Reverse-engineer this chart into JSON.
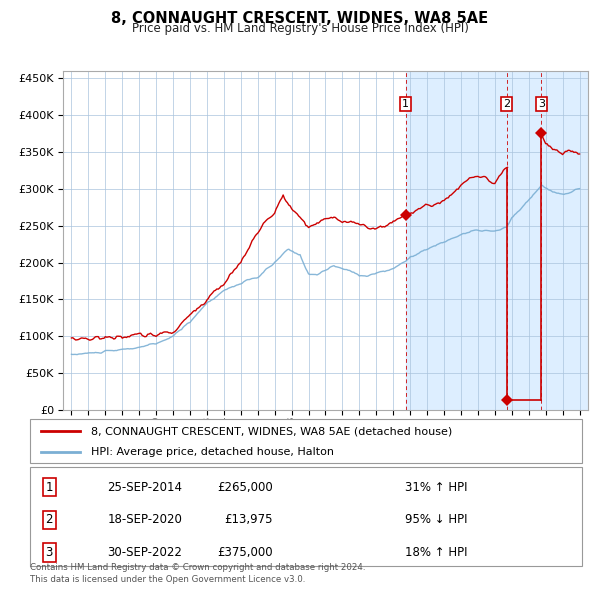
{
  "title": "8, CONNAUGHT CRESCENT, WIDNES, WA8 5AE",
  "subtitle": "Price paid vs. HM Land Registry's House Price Index (HPI)",
  "legend_line1": "8, CONNAUGHT CRESCENT, WIDNES, WA8 5AE (detached house)",
  "legend_line2": "HPI: Average price, detached house, Halton",
  "footer1": "Contains HM Land Registry data © Crown copyright and database right 2024.",
  "footer2": "This data is licensed under the Open Government Licence v3.0.",
  "transactions": [
    {
      "num": 1,
      "date": "25-SEP-2014",
      "price": 265000,
      "price_str": "£265,000",
      "pct": "31%",
      "dir": "↑",
      "x": 2014.73
    },
    {
      "num": 2,
      "date": "18-SEP-2020",
      "price": 13975,
      "price_str": "£13,975",
      "pct": "95%",
      "dir": "↓",
      "x": 2020.71
    },
    {
      "num": 3,
      "date": "30-SEP-2022",
      "price": 375000,
      "price_str": "£375,000",
      "pct": "18%",
      "dir": "↑",
      "x": 2022.75
    }
  ],
  "hpi_color": "#7bafd4",
  "price_color": "#cc0000",
  "shade_color": "#ddeeff",
  "grid_color": "#aac4dd",
  "bg_color": "#ffffff",
  "ylim": [
    0,
    460000
  ],
  "xlim": [
    1994.5,
    2025.5
  ],
  "hpi_anchors": [
    [
      1995.0,
      75000
    ],
    [
      1996.0,
      77000
    ],
    [
      1997.0,
      79000
    ],
    [
      1998.0,
      82000
    ],
    [
      1999.0,
      85000
    ],
    [
      2000.0,
      90000
    ],
    [
      2001.0,
      100000
    ],
    [
      2002.0,
      120000
    ],
    [
      2003.0,
      145000
    ],
    [
      2004.0,
      162000
    ],
    [
      2005.0,
      172000
    ],
    [
      2006.0,
      180000
    ],
    [
      2007.0,
      200000
    ],
    [
      2007.8,
      218000
    ],
    [
      2008.5,
      210000
    ],
    [
      2009.0,
      185000
    ],
    [
      2009.5,
      183000
    ],
    [
      2010.0,
      190000
    ],
    [
      2010.5,
      195000
    ],
    [
      2011.0,
      192000
    ],
    [
      2011.5,
      188000
    ],
    [
      2012.0,
      183000
    ],
    [
      2012.5,
      182000
    ],
    [
      2013.0,
      186000
    ],
    [
      2013.5,
      188000
    ],
    [
      2014.0,
      192000
    ],
    [
      2014.73,
      202000
    ],
    [
      2015.0,
      208000
    ],
    [
      2016.0,
      218000
    ],
    [
      2017.0,
      228000
    ],
    [
      2018.0,
      238000
    ],
    [
      2019.0,
      244000
    ],
    [
      2020.0,
      242000
    ],
    [
      2020.71,
      248000
    ],
    [
      2021.0,
      260000
    ],
    [
      2021.5,
      272000
    ],
    [
      2022.0,
      285000
    ],
    [
      2022.75,
      305000
    ],
    [
      2023.0,
      300000
    ],
    [
      2023.5,
      295000
    ],
    [
      2024.0,
      292000
    ],
    [
      2024.5,
      296000
    ],
    [
      2025.0,
      300000
    ]
  ],
  "price_anchors": [
    [
      1995.0,
      97000
    ],
    [
      1996.0,
      97000
    ],
    [
      1997.0,
      98000
    ],
    [
      1998.0,
      100000
    ],
    [
      1999.0,
      101000
    ],
    [
      2000.0,
      102000
    ],
    [
      2001.0,
      106000
    ],
    [
      2002.0,
      128000
    ],
    [
      2003.0,
      152000
    ],
    [
      2004.0,
      172000
    ],
    [
      2005.0,
      200000
    ],
    [
      2006.0,
      242000
    ],
    [
      2007.0,
      268000
    ],
    [
      2007.5,
      290000
    ],
    [
      2008.0,
      272000
    ],
    [
      2009.0,
      248000
    ],
    [
      2009.5,
      252000
    ],
    [
      2010.0,
      258000
    ],
    [
      2010.5,
      262000
    ],
    [
      2011.0,
      255000
    ],
    [
      2011.5,
      258000
    ],
    [
      2012.0,
      250000
    ],
    [
      2012.5,
      248000
    ],
    [
      2013.0,
      246000
    ],
    [
      2013.5,
      250000
    ],
    [
      2014.0,
      256000
    ],
    [
      2014.73,
      265000
    ],
    [
      2015.0,
      268000
    ],
    [
      2016.0,
      276000
    ],
    [
      2017.0,
      285000
    ],
    [
      2017.5,
      292000
    ],
    [
      2018.0,
      305000
    ],
    [
      2018.5,
      315000
    ],
    [
      2019.0,
      318000
    ],
    [
      2019.5,
      314000
    ],
    [
      2020.0,
      305000
    ],
    [
      2020.5,
      322000
    ],
    [
      2020.71,
      328000
    ],
    [
      2022.75,
      375000
    ],
    [
      2023.0,
      362000
    ],
    [
      2023.5,
      352000
    ],
    [
      2024.0,
      348000
    ],
    [
      2024.5,
      352000
    ],
    [
      2025.0,
      348000
    ]
  ]
}
